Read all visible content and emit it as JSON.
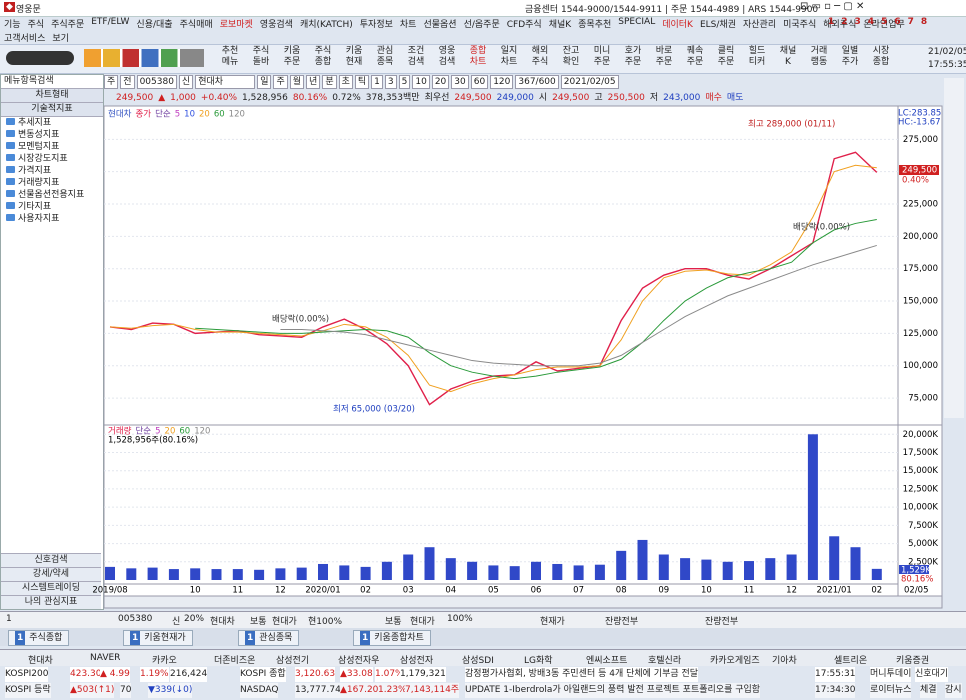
{
  "window": {
    "title": "영웅문",
    "info": "금융센터 1544-9000/1544-9911 | 주문 1544-4989 | ARS 1544-9900"
  },
  "menu": [
    "기능",
    "주식",
    "주식주문",
    "ETF/ELW",
    "신용/대출",
    "주식매매",
    "로보마켓",
    "영웅검색",
    "캐치(KATCH)",
    "투자정보",
    "차트",
    "선물옵션",
    "선/옵주문",
    "CFD주식",
    "채널K",
    "종목추천",
    "SPECIAL",
    "데이터K",
    "ELS/채권",
    "자산관리",
    "미국주식",
    "해외주식",
    "온라인업무"
  ],
  "menu2": [
    "고객서비스",
    "보기"
  ],
  "screen_numbers": [
    1,
    2,
    3,
    4,
    5,
    6,
    7,
    8
  ],
  "toolbar": {
    "buttons": [
      [
        "추천",
        "메뉴"
      ],
      [
        "주식",
        "돌바"
      ],
      [
        "키움",
        "주문"
      ],
      [
        "주식",
        "종합"
      ],
      [
        "키움",
        "현재"
      ],
      [
        "관심",
        "종목"
      ],
      [
        "조건",
        "검색"
      ],
      [
        "영웅",
        "검색"
      ],
      [
        "종합",
        "차트"
      ],
      [
        "일지",
        "차트"
      ],
      [
        "해외",
        "주식"
      ],
      [
        "잔고",
        "확인"
      ],
      [
        "미니",
        "주문"
      ],
      [
        "호가",
        "주문"
      ],
      [
        "바로",
        "주문"
      ],
      [
        "퀘속",
        "주문"
      ],
      [
        "클릭",
        "주문"
      ],
      [
        "힐드",
        "티커"
      ],
      [
        "채널",
        "K"
      ],
      [
        "거래",
        "랭동"
      ],
      [
        "일별",
        "주가"
      ],
      [
        "시장",
        "종합"
      ]
    ],
    "date": "21/02/05",
    "time": "17:55:35"
  },
  "sidebar": {
    "search": "메뉴항목검색",
    "chart_type": "차트형태",
    "tech": "기술적지표",
    "items": [
      "추세지표",
      "변동성지표",
      "모멘텀지표",
      "시장강도지표",
      "가격지표",
      "거래량지표",
      "선물옵션전용지표",
      "기타지표",
      "사용자지표"
    ],
    "bottom": [
      "신호검색",
      "강세/약세",
      "시스템트레이딩",
      "나의 관심지표"
    ]
  },
  "chart_toolbar": [
    "주",
    "전",
    "005380",
    "신",
    "현대차",
    "일",
    "주",
    "월",
    "년",
    "분",
    "초",
    "틱",
    "1",
    "3",
    "5",
    "10",
    "20",
    "30",
    "60",
    "120",
    "367/600",
    "2021/02/05"
  ],
  "quote": [
    "249,500",
    "▲",
    "1,000",
    "+0.40%",
    "1,528,956",
    "80.16%",
    "0.72%",
    "378,353백만",
    "최우선",
    "249,500",
    "249,000",
    "시",
    "249,500",
    "고",
    "250,500",
    "저",
    "243,000",
    "매수",
    "매도"
  ],
  "chart_data": [
    {
      "type": "line",
      "title": "현대차",
      "legend_prefix": "단순",
      "series": [
        {
          "name": "종가",
          "color": "#e0204a",
          "values": [
            130000,
            128000,
            133000,
            132000,
            125000,
            126000,
            127000,
            124000,
            123000,
            122000,
            130000,
            136000,
            128000,
            117000,
            100000,
            70000,
            82000,
            88000,
            92000,
            93000,
            103000,
            96000,
            98000,
            100000,
            135000,
            160000,
            170000,
            175000,
            175000,
            170000,
            167000,
            175000,
            185000,
            195000,
            260000,
            265000,
            249500
          ]
        },
        {
          "name": "20",
          "color": "#f0a020",
          "values": [
            130000,
            129000,
            131000,
            132000,
            128000,
            126000,
            126000,
            125000,
            124000,
            123000,
            127000,
            132000,
            130000,
            122000,
            108000,
            85000,
            80000,
            86000,
            90000,
            93000,
            97000,
            99000,
            99000,
            100000,
            120000,
            150000,
            168000,
            173000,
            174000,
            171000,
            170000,
            178000,
            188000,
            215000,
            250000,
            255000,
            253000
          ]
        },
        {
          "name": "60",
          "color": "#2a9a3a",
          "values": [
            null,
            null,
            null,
            null,
            129000,
            128000,
            127000,
            126000,
            125000,
            125000,
            126000,
            127000,
            128000,
            127000,
            122000,
            110000,
            100000,
            95000,
            92000,
            90000,
            92000,
            95000,
            97000,
            99000,
            105000,
            118000,
            135000,
            150000,
            160000,
            168000,
            172000,
            175000,
            180000,
            195000,
            205000,
            210000,
            213000
          ]
        },
        {
          "name": "120",
          "color": "#8a8a8a",
          "values": [
            null,
            null,
            null,
            null,
            null,
            null,
            null,
            null,
            128000,
            128000,
            127000,
            126000,
            124000,
            120000,
            116000,
            112000,
            108000,
            104000,
            102000,
            101000,
            100000,
            100000,
            100000,
            102000,
            108000,
            118000,
            128000,
            138000,
            146000,
            154000,
            160000,
            166000,
            172000,
            178000,
            183000,
            188000,
            193000
          ]
        }
      ],
      "extra_legend": [
        {
          "name": "5",
          "color": "#c040c0"
        },
        {
          "name": "10",
          "color": "#3050e0"
        }
      ],
      "ylim": [
        65000,
        300000
      ],
      "yticks": [
        {
          "value": 75000,
          "label": "75,000"
        },
        {
          "value": 100000,
          "label": "100,000"
        },
        {
          "value": 125000,
          "label": "125,000"
        },
        {
          "value": 150000,
          "label": "150,000"
        },
        {
          "value": 175000,
          "label": "175,000"
        },
        {
          "value": 200000,
          "label": "200,000"
        },
        {
          "value": 225000,
          "label": "225,000"
        },
        {
          "value": 250000,
          "label": "250,000"
        },
        {
          "value": 275000,
          "label": "275,000"
        }
      ],
      "annotations": [
        "최고 289,000 (01/11)",
        "최저 65,000 (03/20)",
        "배당락(0.00%)",
        "배당락(0.00%)"
      ],
      "side_labels": [
        "LC:283.85",
        "HC:-13.67"
      ],
      "price_label": "249,500",
      "change_label": "0.40%",
      "grid": true
    },
    {
      "type": "bar",
      "title": "거래량",
      "legend_prefix": "단순",
      "color": "#3048c8",
      "ma_legend": [
        {
          "name": "5",
          "color": "#c040c0"
        },
        {
          "name": "20",
          "color": "#f0a020"
        },
        {
          "name": "60",
          "color": "#2a9a3a"
        },
        {
          "name": "120",
          "color": "#8a8a8a"
        }
      ],
      "volume_label": "1,528,956주(80.16%)",
      "categories": [
        "2019/08",
        null,
        null,
        null,
        "10",
        null,
        "11",
        null,
        "12",
        null,
        "2020/01",
        null,
        "02",
        null,
        "03",
        null,
        "04",
        null,
        "05",
        null,
        "06",
        null,
        "07",
        null,
        "08",
        null,
        "09",
        null,
        "10",
        null,
        "11",
        null,
        "12",
        null,
        "2021/01",
        null,
        "02"
      ],
      "values": [
        1800,
        1600,
        1700,
        1500,
        1600,
        1500,
        1500,
        1400,
        1600,
        1700,
        2200,
        2000,
        1800,
        2500,
        3500,
        4500,
        3000,
        2500,
        2000,
        1900,
        2500,
        2200,
        2000,
        2100,
        4000,
        5500,
        3500,
        3000,
        2800,
        2500,
        2600,
        3000,
        3500,
        20000,
        6000,
        4500,
        1528.956
      ],
      "ylim": [
        0,
        21000
      ],
      "yticks": [
        {
          "value": 2500,
          "label": "2,500K"
        },
        {
          "value": 5000,
          "label": "5,000K"
        },
        {
          "value": 7500,
          "label": "7,500K"
        },
        {
          "value": 10000,
          "label": "10,000K"
        },
        {
          "value": 12500,
          "label": "12,500K"
        },
        {
          "value": 15000,
          "label": "15,000K"
        },
        {
          "value": 17500,
          "label": "17,500K"
        },
        {
          "value": 20000,
          "label": "20,000K"
        }
      ],
      "last_label": "1,529K",
      "ratio_label": "80.16%",
      "date_label": "02/05",
      "grid": true
    }
  ],
  "order_bar": [
    "1",
    "005380",
    "신",
    "20%",
    "현대차",
    "보통",
    "현대가",
    "현100%",
    "보통",
    "현대가",
    "100%",
    "현재가",
    "잔량전부",
    "잔량전부"
  ],
  "tabs": [
    {
      "num": 1,
      "label": "주식종합"
    },
    {
      "num": 1,
      "label": "키움현재가"
    },
    {
      "num": 1,
      "label": "관심종목"
    },
    {
      "num": 1,
      "label": "키움종합차트"
    }
  ],
  "tickers": [
    "현대차",
    "NAVER",
    "카카오",
    "더존비즈온",
    "삼성전기",
    "삼성전자우",
    "삼성전자",
    "삼성SDI",
    "LG화학",
    "엔씨소프트",
    "호텔신라",
    "카카오게임즈",
    "기아차",
    "셀트리온",
    "키움증권"
  ],
  "market_rows": [
    [
      "KOSPI200",
      "423.30",
      "▲ 4.99",
      "1.19%",
      "216,424",
      "KOSPI 종합",
      "3,120.63",
      "▲33.08",
      "1.07%",
      "1,179,321",
      "감정평가사협회, 방배3동 주민센터 등 4개 단체에 기부금 전달",
      "17:55:31",
      "머니투데이",
      "신호대기"
    ],
    [
      "KOSPI 등락",
      "▲503(↑1)",
      "70",
      "▼339(↓0)",
      "NASDAQ",
      "13,777.74",
      "▲167.20",
      "1.23%",
      "7,143,114주",
      "UPDATE 1-Iberdrola가 아일랜드의 풍력 발전 프로젝트 포트폴리오를 구입함",
      "17:34:30",
      "로이터뉴스",
      "체결",
      "감시"
    ]
  ]
}
